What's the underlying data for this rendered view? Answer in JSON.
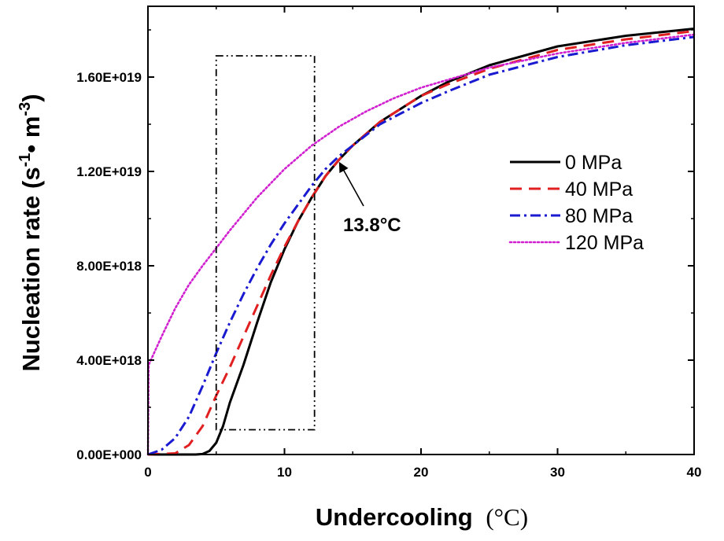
{
  "chart_data": {
    "type": "line",
    "xlabel": "Undercooling",
    "xlabel_unit": "(°C)",
    "ylabel_main": "Nucleation rate (s",
    "ylabel_sup1": "-1",
    "ylabel_mid": "• m",
    "ylabel_sup2": "-3",
    "ylabel_end": ")",
    "xlim": [
      0,
      40
    ],
    "ylim": [
      0,
      1.9e+19
    ],
    "x_ticks": [
      0,
      10,
      20,
      30,
      40
    ],
    "x_tick_labels": [
      "0",
      "10",
      "20",
      "30",
      "40"
    ],
    "y_ticks": [
      0,
      4e+18,
      8e+18,
      1.2e+19,
      1.6e+19
    ],
    "y_tick_labels": [
      "0.00E+000",
      "4.00E+018",
      "8.00E+018",
      "1.20E+019",
      "1.60E+019"
    ],
    "legend_position": "right",
    "series": [
      {
        "name": "0 MPa",
        "color": "#000000",
        "dash": "solid",
        "points": [
          [
            0,
            0
          ],
          [
            3.5,
            0
          ],
          [
            4,
            2e+16
          ],
          [
            4.5,
            1.5e+17
          ],
          [
            5,
            5e+17
          ],
          [
            5.5,
            1.2e+18
          ],
          [
            6,
            2.2e+18
          ],
          [
            7,
            3.8e+18
          ],
          [
            8,
            5.6e+18
          ],
          [
            9,
            7.3e+18
          ],
          [
            10,
            8.7e+18
          ],
          [
            11,
            9.9e+18
          ],
          [
            12,
            1.09e+19
          ],
          [
            13,
            1.18e+19
          ],
          [
            14,
            1.25e+19
          ],
          [
            15,
            1.31e+19
          ],
          [
            17,
            1.41e+19
          ],
          [
            20,
            1.52e+19
          ],
          [
            22,
            1.58e+19
          ],
          [
            25,
            1.65e+19
          ],
          [
            30,
            1.73e+19
          ],
          [
            35,
            1.775e+19
          ],
          [
            40,
            1.805e+19
          ]
        ]
      },
      {
        "name": "40 MPa",
        "color": "#e02020",
        "dash": "dashed",
        "points": [
          [
            0,
            0
          ],
          [
            2,
            5e+16
          ],
          [
            3,
            4e+17
          ],
          [
            4,
            1.2e+18
          ],
          [
            5,
            2.5e+18
          ],
          [
            6,
            3.7e+18
          ],
          [
            7,
            5e+18
          ],
          [
            8,
            6.3e+18
          ],
          [
            9,
            7.6e+18
          ],
          [
            10,
            8.8e+18
          ],
          [
            11,
            9.9e+18
          ],
          [
            12,
            1.09e+19
          ],
          [
            13,
            1.18e+19
          ],
          [
            14,
            1.25e+19
          ],
          [
            15,
            1.31e+19
          ],
          [
            17,
            1.41e+19
          ],
          [
            20,
            1.52e+19
          ],
          [
            22,
            1.57e+19
          ],
          [
            25,
            1.635e+19
          ],
          [
            30,
            1.715e+19
          ],
          [
            35,
            1.76e+19
          ],
          [
            40,
            1.795e+19
          ]
        ]
      },
      {
        "name": "80 MPa",
        "color": "#1a1ad0",
        "dash": "dashdot",
        "points": [
          [
            0,
            0
          ],
          [
            1,
            2e+17
          ],
          [
            2,
            7e+17
          ],
          [
            3,
            1.6e+18
          ],
          [
            4,
            2.9e+18
          ],
          [
            5,
            4.3e+18
          ],
          [
            6,
            5.6e+18
          ],
          [
            7,
            6.8e+18
          ],
          [
            8,
            7.9e+18
          ],
          [
            9,
            8.9e+18
          ],
          [
            10,
            9.8e+18
          ],
          [
            11,
            1.06e+19
          ],
          [
            12,
            1.14e+19
          ],
          [
            13,
            1.21e+19
          ],
          [
            14,
            1.265e+19
          ],
          [
            15,
            1.31e+19
          ],
          [
            17,
            1.4e+19
          ],
          [
            20,
            1.49e+19
          ],
          [
            22,
            1.54e+19
          ],
          [
            25,
            1.61e+19
          ],
          [
            30,
            1.685e+19
          ],
          [
            35,
            1.735e+19
          ],
          [
            40,
            1.77e+19
          ]
        ]
      },
      {
        "name": "120 MPa",
        "color": "#d020d0",
        "dash": "dotted",
        "points": [
          [
            0,
            0
          ],
          [
            0.05,
            3.8e+18
          ],
          [
            1,
            5e+18
          ],
          [
            2,
            6.2e+18
          ],
          [
            3,
            7.2e+18
          ],
          [
            4,
            8e+18
          ],
          [
            5,
            8.75e+18
          ],
          [
            6,
            9.5e+18
          ],
          [
            8,
            1.09e+19
          ],
          [
            10,
            1.21e+19
          ],
          [
            12,
            1.31e+19
          ],
          [
            14,
            1.39e+19
          ],
          [
            16,
            1.455e+19
          ],
          [
            18,
            1.51e+19
          ],
          [
            20,
            1.555e+19
          ],
          [
            25,
            1.64e+19
          ],
          [
            30,
            1.7e+19
          ],
          [
            35,
            1.745e+19
          ],
          [
            40,
            1.78e+19
          ]
        ]
      }
    ],
    "annotation": {
      "text": "13.8°C",
      "point": [
        13.8,
        1.25e+19
      ]
    },
    "highlight_box": {
      "x_range": [
        5,
        12.2
      ],
      "y_range": [
        1.05e+18,
        1.69e+19
      ]
    }
  }
}
